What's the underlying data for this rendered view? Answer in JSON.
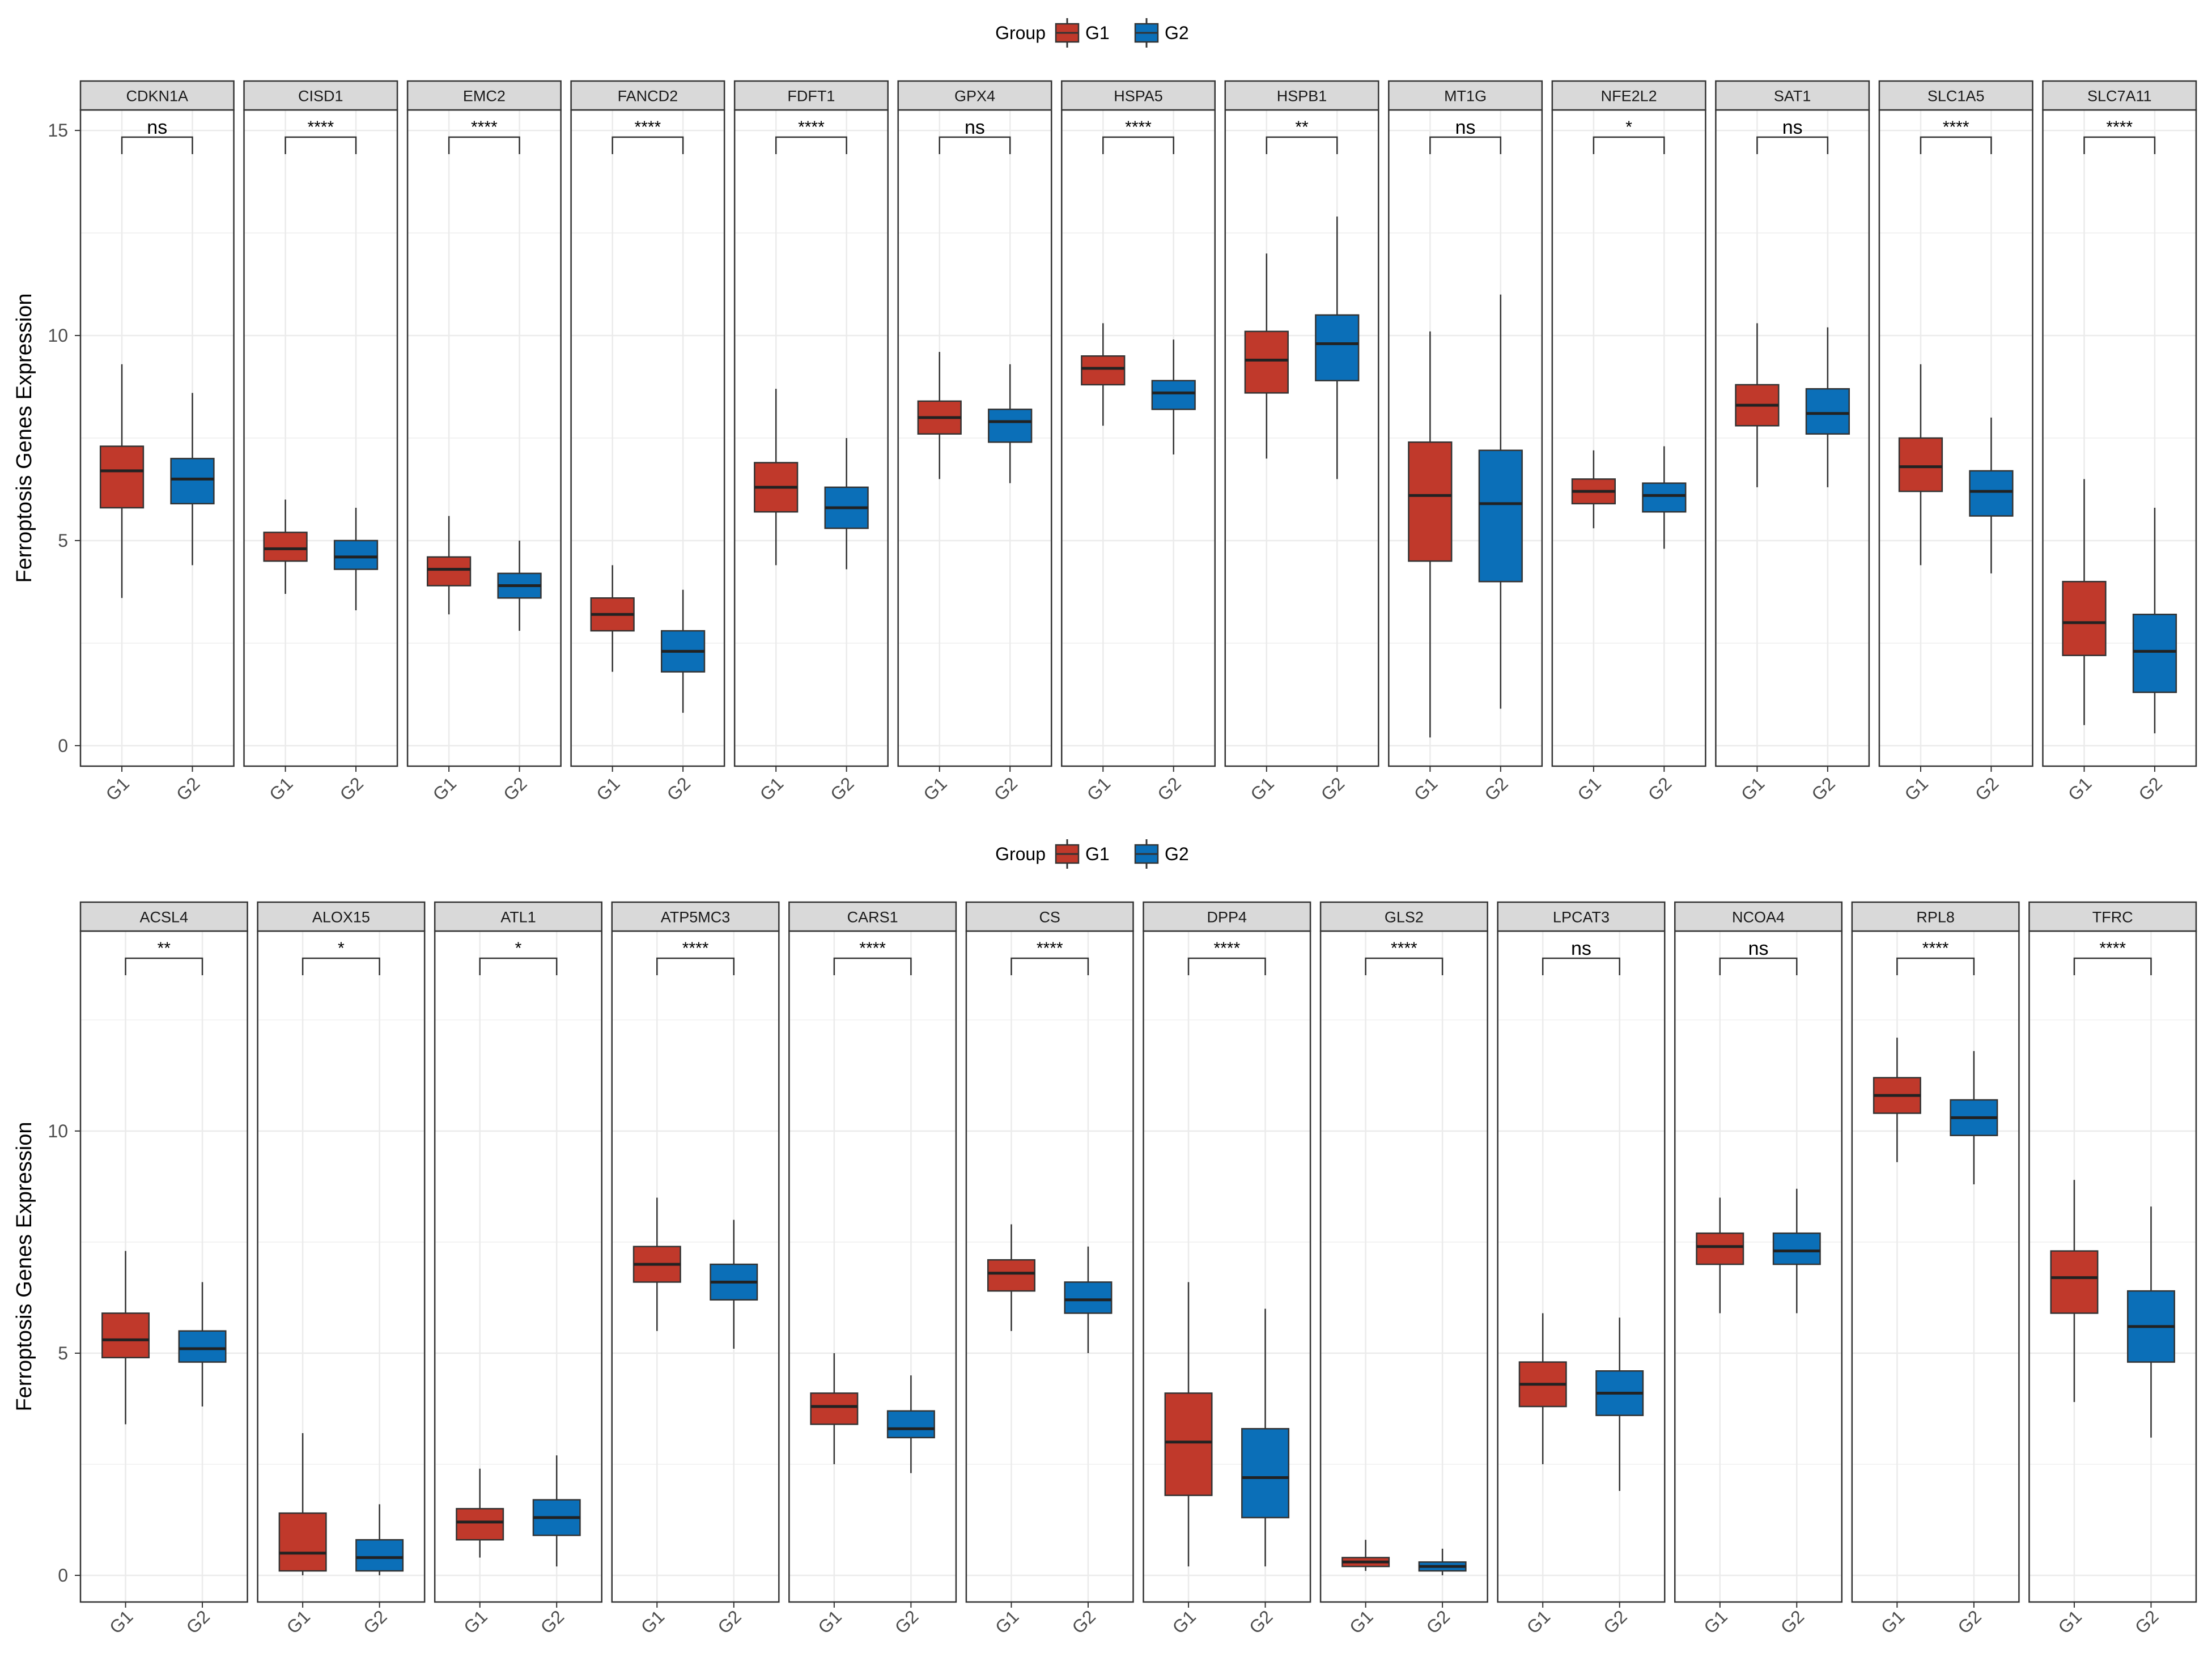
{
  "colors": {
    "G1": "#C0392B",
    "G2": "#0B6FB8",
    "strip": "#d9d9d9",
    "grid": "#ebebeb",
    "border": "#333333",
    "text": "#000000"
  },
  "chart_data": [
    {
      "type": "boxplot",
      "facet": "gene",
      "legend": {
        "title": "Group",
        "items": [
          "G1",
          "G2"
        ],
        "position": "top"
      },
      "ylabel": "Ferroptosis Genes Expression",
      "ylim": [
        -0.5,
        15.5
      ],
      "yticks": [
        0,
        5,
        10,
        15
      ],
      "xlabels": [
        "G1",
        "G2"
      ],
      "panels": [
        {
          "gene": "CDKN1A",
          "sig": "ns",
          "G1": {
            "min": 3.6,
            "q1": 5.8,
            "median": 6.7,
            "q3": 7.3,
            "max": 9.3
          },
          "G2": {
            "min": 4.4,
            "q1": 5.9,
            "median": 6.5,
            "q3": 7.0,
            "max": 8.6
          }
        },
        {
          "gene": "CISD1",
          "sig": "****",
          "G1": {
            "min": 3.7,
            "q1": 4.5,
            "median": 4.8,
            "q3": 5.2,
            "max": 6.0
          },
          "G2": {
            "min": 3.3,
            "q1": 4.3,
            "median": 4.6,
            "q3": 5.0,
            "max": 5.8
          }
        },
        {
          "gene": "EMC2",
          "sig": "****",
          "G1": {
            "min": 3.2,
            "q1": 3.9,
            "median": 4.3,
            "q3": 4.6,
            "max": 5.6
          },
          "G2": {
            "min": 2.8,
            "q1": 3.6,
            "median": 3.9,
            "q3": 4.2,
            "max": 5.0
          }
        },
        {
          "gene": "FANCD2",
          "sig": "****",
          "G1": {
            "min": 1.8,
            "q1": 2.8,
            "median": 3.2,
            "q3": 3.6,
            "max": 4.4
          },
          "G2": {
            "min": 0.8,
            "q1": 1.8,
            "median": 2.3,
            "q3": 2.8,
            "max": 3.8
          }
        },
        {
          "gene": "FDFT1",
          "sig": "****",
          "G1": {
            "min": 4.4,
            "q1": 5.7,
            "median": 6.3,
            "q3": 6.9,
            "max": 8.7
          },
          "G2": {
            "min": 4.3,
            "q1": 5.3,
            "median": 5.8,
            "q3": 6.3,
            "max": 7.5
          }
        },
        {
          "gene": "GPX4",
          "sig": "ns",
          "G1": {
            "min": 6.5,
            "q1": 7.6,
            "median": 8.0,
            "q3": 8.4,
            "max": 9.6
          },
          "G2": {
            "min": 6.4,
            "q1": 7.4,
            "median": 7.9,
            "q3": 8.2,
            "max": 9.3
          }
        },
        {
          "gene": "HSPA5",
          "sig": "****",
          "G1": {
            "min": 7.8,
            "q1": 8.8,
            "median": 9.2,
            "q3": 9.5,
            "max": 10.3
          },
          "G2": {
            "min": 7.1,
            "q1": 8.2,
            "median": 8.6,
            "q3": 8.9,
            "max": 9.9
          }
        },
        {
          "gene": "HSPB1",
          "sig": "**",
          "G1": {
            "min": 7.0,
            "q1": 8.6,
            "median": 9.4,
            "q3": 10.1,
            "max": 12.0
          },
          "G2": {
            "min": 6.5,
            "q1": 8.9,
            "median": 9.8,
            "q3": 10.5,
            "max": 12.9
          }
        },
        {
          "gene": "MT1G",
          "sig": "ns",
          "G1": {
            "min": 0.2,
            "q1": 4.5,
            "median": 6.1,
            "q3": 7.4,
            "max": 10.1
          },
          "G2": {
            "min": 0.9,
            "q1": 4.0,
            "median": 5.9,
            "q3": 7.2,
            "max": 11.0
          }
        },
        {
          "gene": "NFE2L2",
          "sig": "*",
          "G1": {
            "min": 5.3,
            "q1": 5.9,
            "median": 6.2,
            "q3": 6.5,
            "max": 7.2
          },
          "G2": {
            "min": 4.8,
            "q1": 5.7,
            "median": 6.1,
            "q3": 6.4,
            "max": 7.3
          }
        },
        {
          "gene": "SAT1",
          "sig": "ns",
          "G1": {
            "min": 6.3,
            "q1": 7.8,
            "median": 8.3,
            "q3": 8.8,
            "max": 10.3
          },
          "G2": {
            "min": 6.3,
            "q1": 7.6,
            "median": 8.1,
            "q3": 8.7,
            "max": 10.2
          }
        },
        {
          "gene": "SLC1A5",
          "sig": "****",
          "G1": {
            "min": 4.4,
            "q1": 6.2,
            "median": 6.8,
            "q3": 7.5,
            "max": 9.3
          },
          "G2": {
            "min": 4.2,
            "q1": 5.6,
            "median": 6.2,
            "q3": 6.7,
            "max": 8.0
          }
        },
        {
          "gene": "SLC7A11",
          "sig": "****",
          "G1": {
            "min": 0.5,
            "q1": 2.2,
            "median": 3.0,
            "q3": 4.0,
            "max": 6.5
          },
          "G2": {
            "min": 0.3,
            "q1": 1.3,
            "median": 2.3,
            "q3": 3.2,
            "max": 5.8
          }
        }
      ]
    },
    {
      "type": "boxplot",
      "facet": "gene",
      "legend": {
        "title": "Group",
        "items": [
          "G1",
          "G2"
        ],
        "position": "top"
      },
      "ylabel": "Ferroptosis Genes Expression",
      "ylim": [
        -0.6,
        14.5
      ],
      "yticks": [
        0,
        5,
        10
      ],
      "xlabels": [
        "G1",
        "G2"
      ],
      "panels": [
        {
          "gene": "ACSL4",
          "sig": "**",
          "G1": {
            "min": 3.4,
            "q1": 4.9,
            "median": 5.3,
            "q3": 5.9,
            "max": 7.3
          },
          "G2": {
            "min": 3.8,
            "q1": 4.8,
            "median": 5.1,
            "q3": 5.5,
            "max": 6.6
          }
        },
        {
          "gene": "ALOX15",
          "sig": "*",
          "G1": {
            "min": 0.0,
            "q1": 0.1,
            "median": 0.5,
            "q3": 1.4,
            "max": 3.2
          },
          "G2": {
            "min": 0.0,
            "q1": 0.1,
            "median": 0.4,
            "q3": 0.8,
            "max": 1.6
          }
        },
        {
          "gene": "ATL1",
          "sig": "*",
          "G1": {
            "min": 0.4,
            "q1": 0.8,
            "median": 1.2,
            "q3": 1.5,
            "max": 2.4
          },
          "G2": {
            "min": 0.2,
            "q1": 0.9,
            "median": 1.3,
            "q3": 1.7,
            "max": 2.7
          }
        },
        {
          "gene": "ATP5MC3",
          "sig": "****",
          "G1": {
            "min": 5.5,
            "q1": 6.6,
            "median": 7.0,
            "q3": 7.4,
            "max": 8.5
          },
          "G2": {
            "min": 5.1,
            "q1": 6.2,
            "median": 6.6,
            "q3": 7.0,
            "max": 8.0
          }
        },
        {
          "gene": "CARS1",
          "sig": "****",
          "G1": {
            "min": 2.5,
            "q1": 3.4,
            "median": 3.8,
            "q3": 4.1,
            "max": 5.0
          },
          "G2": {
            "min": 2.3,
            "q1": 3.1,
            "median": 3.3,
            "q3": 3.7,
            "max": 4.5
          }
        },
        {
          "gene": "CS",
          "sig": "****",
          "G1": {
            "min": 5.5,
            "q1": 6.4,
            "median": 6.8,
            "q3": 7.1,
            "max": 7.9
          },
          "G2": {
            "min": 5.0,
            "q1": 5.9,
            "median": 6.2,
            "q3": 6.6,
            "max": 7.4
          }
        },
        {
          "gene": "DPP4",
          "sig": "****",
          "G1": {
            "min": 0.2,
            "q1": 1.8,
            "median": 3.0,
            "q3": 4.1,
            "max": 6.6
          },
          "G2": {
            "min": 0.2,
            "q1": 1.3,
            "median": 2.2,
            "q3": 3.3,
            "max": 6.0
          }
        },
        {
          "gene": "GLS2",
          "sig": "****",
          "G1": {
            "min": 0.1,
            "q1": 0.2,
            "median": 0.3,
            "q3": 0.4,
            "max": 0.8
          },
          "G2": {
            "min": 0.0,
            "q1": 0.1,
            "median": 0.2,
            "q3": 0.3,
            "max": 0.6
          }
        },
        {
          "gene": "LPCAT3",
          "sig": "ns",
          "G1": {
            "min": 2.5,
            "q1": 3.8,
            "median": 4.3,
            "q3": 4.8,
            "max": 5.9
          },
          "G2": {
            "min": 1.9,
            "q1": 3.6,
            "median": 4.1,
            "q3": 4.6,
            "max": 5.8
          }
        },
        {
          "gene": "NCOA4",
          "sig": "ns",
          "G1": {
            "min": 5.9,
            "q1": 7.0,
            "median": 7.4,
            "q3": 7.7,
            "max": 8.5
          },
          "G2": {
            "min": 5.9,
            "q1": 7.0,
            "median": 7.3,
            "q3": 7.7,
            "max": 8.7
          }
        },
        {
          "gene": "RPL8",
          "sig": "****",
          "G1": {
            "min": 9.3,
            "q1": 10.4,
            "median": 10.8,
            "q3": 11.2,
            "max": 12.1
          },
          "G2": {
            "min": 8.8,
            "q1": 9.9,
            "median": 10.3,
            "q3": 10.7,
            "max": 11.8
          }
        },
        {
          "gene": "TFRC",
          "sig": "****",
          "G1": {
            "min": 3.9,
            "q1": 5.9,
            "median": 6.7,
            "q3": 7.3,
            "max": 8.9
          },
          "G2": {
            "min": 3.1,
            "q1": 4.8,
            "median": 5.6,
            "q3": 6.4,
            "max": 8.3
          }
        }
      ]
    }
  ]
}
